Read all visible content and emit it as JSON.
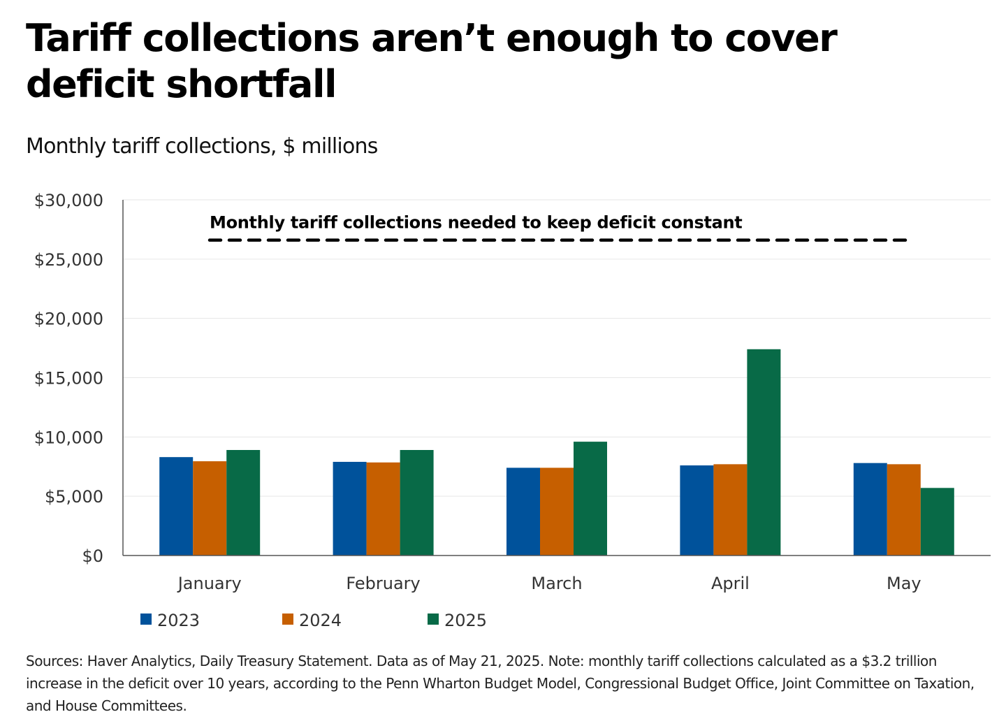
{
  "header": {
    "title": "Tariff collections aren’t enough to cover deficit shortfall",
    "subtitle": "Monthly tariff collections, $ millions"
  },
  "colors": {
    "2023": "#00529b",
    "2024": "#c65f00",
    "2025": "#086a47",
    "reference_line": "#000000",
    "gridline": "#e6e6e6",
    "axis": "#555555"
  },
  "footnote": "Sources: Haver Analytics, Daily Treasury Statement. Data as of May 21, 2025. Note: monthly tariff collections calculated as a $3.2 trillion increase in the deficit over 10 years, according to the Penn Wharton Budget Model, Congressional Budget Office, Joint Committee on Taxation, and House Committees.",
  "chart_data": {
    "type": "bar",
    "title": "Monthly tariff collections, $ millions",
    "xlabel": "",
    "ylabel": "",
    "categories": [
      "January",
      "February",
      "March",
      "April",
      "May"
    ],
    "series": [
      {
        "name": "2023",
        "color": "#00529b",
        "values": [
          8300,
          7900,
          7400,
          7600,
          7800
        ]
      },
      {
        "name": "2024",
        "color": "#c65f00",
        "values": [
          7950,
          7850,
          7400,
          7700,
          7700
        ]
      },
      {
        "name": "2025",
        "color": "#086a47",
        "values": [
          8900,
          8900,
          9600,
          17400,
          5700
        ]
      }
    ],
    "ylim": [
      0,
      30000
    ],
    "yticks": [
      0,
      5000,
      10000,
      15000,
      20000,
      25000,
      30000
    ],
    "ytick_labels": [
      "$0",
      "$5,000",
      "$10,000",
      "$15,000",
      "$20,000",
      "$25,000",
      "$30,000"
    ],
    "grid": true,
    "reference_line": {
      "value": 26600,
      "style": "dashed",
      "label": "Monthly tariff collections needed to keep deficit constant"
    },
    "legend": {
      "placement": "bottom-left",
      "entries": [
        "2023",
        "2024",
        "2025"
      ]
    }
  }
}
